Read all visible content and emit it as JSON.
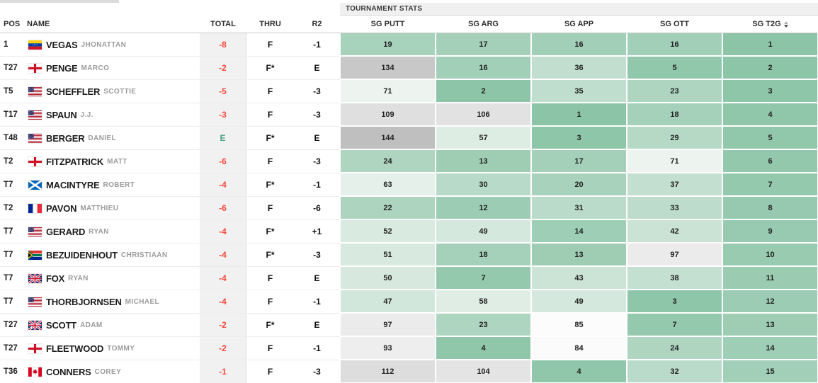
{
  "header": {
    "stats_group_label": "TOURNAMENT STATS",
    "columns": {
      "pos": "POS",
      "name": "NAME",
      "total": "TOTAL",
      "thru": "THRU",
      "r2": "R2"
    },
    "stats_columns": [
      "SG PUTT",
      "SG ARG",
      "SG APP",
      "SG OTT",
      "SG T2G"
    ],
    "sorted_column": "SG T2G"
  },
  "colors": {
    "total_negative": "#f2493f",
    "total_even": "#4aa180",
    "total_column_bg": "#f1f1f1",
    "heatmap_stops": [
      [
        1,
        "#8bc4a7"
      ],
      [
        50,
        "#d7e9de"
      ],
      [
        85,
        "#fbfcfb"
      ],
      [
        90,
        "#f1f1f1"
      ],
      [
        145,
        "#bebebe"
      ]
    ]
  },
  "rows": [
    {
      "pos": "1",
      "country": "venezuela",
      "last_name": "Vegas",
      "first_name": "Jhonattan",
      "total": "-8",
      "thru": "F",
      "r2": "-1",
      "stats": [
        19,
        17,
        16,
        16,
        1
      ]
    },
    {
      "pos": "T27",
      "country": "england",
      "last_name": "Penge",
      "first_name": "Marco",
      "total": "-2",
      "thru": "F*",
      "r2": "E",
      "stats": [
        134,
        16,
        36,
        5,
        2
      ]
    },
    {
      "pos": "T5",
      "country": "usa",
      "last_name": "Scheffler",
      "first_name": "Scottie",
      "total": "-5",
      "thru": "F",
      "r2": "-3",
      "stats": [
        71,
        2,
        35,
        23,
        3
      ]
    },
    {
      "pos": "T17",
      "country": "usa",
      "last_name": "Spaun",
      "first_name": "J.J.",
      "total": "-3",
      "thru": "F",
      "r2": "-3",
      "stats": [
        109,
        106,
        1,
        18,
        4
      ]
    },
    {
      "pos": "T48",
      "country": "usa",
      "last_name": "Berger",
      "first_name": "Daniel",
      "total": "E",
      "thru": "F*",
      "r2": "E",
      "stats": [
        144,
        57,
        3,
        29,
        5
      ]
    },
    {
      "pos": "T2",
      "country": "england",
      "last_name": "Fitzpatrick",
      "first_name": "Matt",
      "total": "-6",
      "thru": "F",
      "r2": "-3",
      "stats": [
        24,
        13,
        17,
        71,
        6
      ]
    },
    {
      "pos": "T7",
      "country": "scotland",
      "last_name": "MacIntyre",
      "first_name": "Robert",
      "total": "-4",
      "thru": "F*",
      "r2": "-1",
      "stats": [
        63,
        30,
        20,
        37,
        7
      ]
    },
    {
      "pos": "T2",
      "country": "france",
      "last_name": "Pavon",
      "first_name": "Matthieu",
      "total": "-6",
      "thru": "F",
      "r2": "-6",
      "stats": [
        22,
        12,
        31,
        33,
        8
      ]
    },
    {
      "pos": "T7",
      "country": "usa",
      "last_name": "Gerard",
      "first_name": "Ryan",
      "total": "-4",
      "thru": "F*",
      "r2": "+1",
      "stats": [
        52,
        49,
        14,
        42,
        9
      ]
    },
    {
      "pos": "T7",
      "country": "south-africa",
      "last_name": "Bezuidenhout",
      "first_name": "Christiaan",
      "total": "-4",
      "thru": "F*",
      "r2": "-3",
      "stats": [
        51,
        18,
        13,
        97,
        10
      ]
    },
    {
      "pos": "T7",
      "country": "new-zealand",
      "last_name": "Fox",
      "first_name": "Ryan",
      "total": "-4",
      "thru": "F",
      "r2": "E",
      "stats": [
        50,
        7,
        43,
        38,
        11
      ]
    },
    {
      "pos": "T7",
      "country": "usa",
      "last_name": "Thorbjornsen",
      "first_name": "Michael",
      "total": "-4",
      "thru": "F",
      "r2": "-1",
      "stats": [
        47,
        58,
        49,
        3,
        12
      ]
    },
    {
      "pos": "T27",
      "country": "australia",
      "last_name": "Scott",
      "first_name": "Adam",
      "total": "-2",
      "thru": "F*",
      "r2": "E",
      "stats": [
        97,
        23,
        85,
        7,
        13
      ]
    },
    {
      "pos": "T27",
      "country": "england",
      "last_name": "Fleetwood",
      "first_name": "Tommy",
      "total": "-2",
      "thru": "F",
      "r2": "-1",
      "stats": [
        93,
        4,
        84,
        24,
        14
      ]
    },
    {
      "pos": "T36",
      "country": "canada",
      "last_name": "Conners",
      "first_name": "Corey",
      "total": "-1",
      "thru": "F",
      "r2": "-3",
      "stats": [
        112,
        104,
        4,
        32,
        15
      ]
    }
  ]
}
